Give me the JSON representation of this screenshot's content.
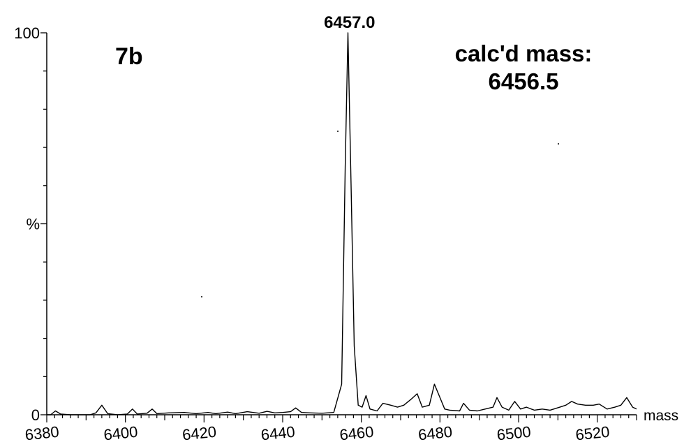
{
  "chart_data": {
    "type": "line",
    "panel_label": "7b",
    "annotation": [
      "calc'd mass:",
      "6456.5"
    ],
    "peak_label": {
      "x": 6457.0,
      "text": "6457.0"
    },
    "xlabel": "mass",
    "ylabel": "%",
    "xlim": [
      6380,
      6530
    ],
    "ylim": [
      0,
      100
    ],
    "x_ticks": [
      6380,
      6400,
      6420,
      6440,
      6460,
      6480,
      6500,
      6520
    ],
    "y_ticks": [
      {
        "value": 0,
        "label": "0"
      },
      {
        "value": 50,
        "label": "%"
      },
      {
        "value": 100,
        "label": "100"
      }
    ],
    "grid": false,
    "series": [
      {
        "x": [
          6378.5,
          6381,
          6382.2,
          6383.5,
          6386,
          6391,
          6392.5,
          6394,
          6395.5,
          6398,
          6400.5,
          6401.8,
          6403,
          6405.5,
          6406.8,
          6408,
          6411,
          6415,
          6418,
          6421,
          6423,
          6426,
          6428,
          6431,
          6434,
          6436,
          6438,
          6440,
          6442,
          6443.3,
          6444.8,
          6447,
          6450,
          6453,
          6455.0,
          6455.9,
          6456.6,
          6457.4,
          6458.2,
          6459.2,
          6460.2,
          6461.2,
          6462.2,
          6464.0,
          6465.5,
          6467.5,
          6469.2,
          6470.8,
          6472.6,
          6474.2,
          6475.5,
          6477.3,
          6478.6,
          6479.8,
          6481.2,
          6482.5,
          6485.0,
          6486.0,
          6487.5,
          6489.5,
          6491.5,
          6493.5,
          6494.5,
          6495.8,
          6497.5,
          6499.0,
          6500.5,
          6502.0,
          6504.0,
          6506.0,
          6508.0,
          6510.5,
          6512.0,
          6513.5,
          6515.0,
          6517.0,
          6519.0,
          6520.5,
          6522.5,
          6524.5,
          6526.0,
          6527.5,
          6529.0,
          6530.0
        ],
        "y": [
          0,
          0,
          1.0,
          0.2,
          0,
          0,
          0.5,
          2.5,
          0.3,
          0,
          0.2,
          1.5,
          0.2,
          0.4,
          1.5,
          0.3,
          0.5,
          0.6,
          0.3,
          0.6,
          0.3,
          0.7,
          0.3,
          0.8,
          0.4,
          0.9,
          0.5,
          0.6,
          0.8,
          1.8,
          0.6,
          0.5,
          0.4,
          0.6,
          8,
          65,
          100,
          60,
          18,
          2.5,
          2,
          5,
          1.5,
          1,
          3,
          2.5,
          2,
          2.5,
          4,
          5.5,
          2,
          2.5,
          8,
          5,
          1.5,
          1.2,
          1.0,
          3,
          1.2,
          1,
          1.5,
          2,
          4.5,
          2,
          1.2,
          3.5,
          1.5,
          2,
          1.2,
          1.5,
          1.2,
          2,
          2.5,
          3.5,
          2.8,
          2.5,
          2.5,
          2.8,
          1.5,
          2,
          2.5,
          4.5,
          2,
          1.5
        ]
      }
    ]
  }
}
